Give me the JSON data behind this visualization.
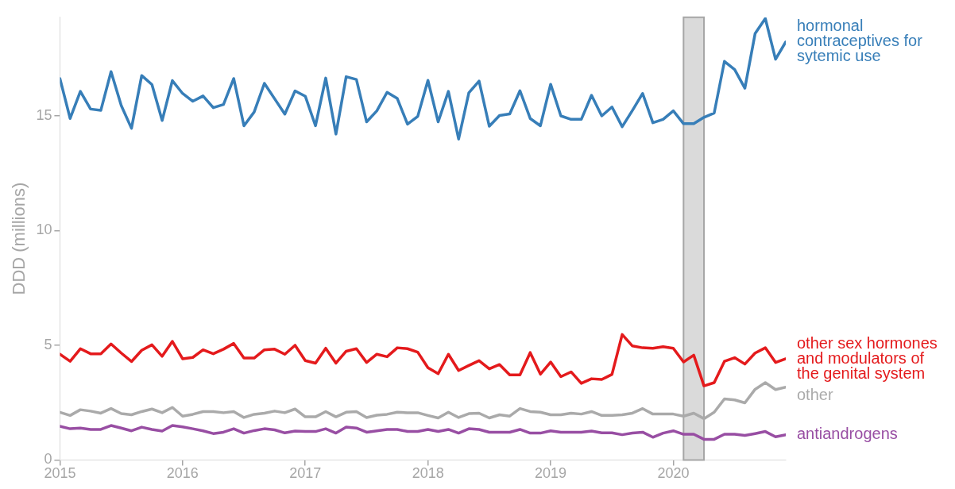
{
  "chart_data": {
    "type": "line",
    "ylabel": "DDD (millions)",
    "x": [
      "2015-01",
      "2015-02",
      "2015-03",
      "2015-04",
      "2015-05",
      "2015-06",
      "2015-07",
      "2015-08",
      "2015-09",
      "2015-10",
      "2015-11",
      "2015-12",
      "2016-01",
      "2016-02",
      "2016-03",
      "2016-04",
      "2016-05",
      "2016-06",
      "2016-07",
      "2016-08",
      "2016-09",
      "2016-10",
      "2016-11",
      "2016-12",
      "2017-01",
      "2017-02",
      "2017-03",
      "2017-04",
      "2017-05",
      "2017-06",
      "2017-07",
      "2017-08",
      "2017-09",
      "2017-10",
      "2017-11",
      "2017-12",
      "2018-01",
      "2018-02",
      "2018-03",
      "2018-04",
      "2018-05",
      "2018-06",
      "2018-07",
      "2018-08",
      "2018-09",
      "2018-10",
      "2018-11",
      "2018-12",
      "2019-01",
      "2019-02",
      "2019-03",
      "2019-04",
      "2019-05",
      "2019-06",
      "2019-07",
      "2019-08",
      "2019-09",
      "2019-10",
      "2019-11",
      "2019-12",
      "2020-01",
      "2020-02",
      "2020-03",
      "2020-04",
      "2020-05",
      "2020-06",
      "2020-07",
      "2020-08",
      "2020-09",
      "2020-10",
      "2020-11",
      "2020-12"
    ],
    "series": [
      {
        "name": "hormonal contraceptives for sytemic use",
        "color": "#377eb8",
        "values": [
          16.63,
          14.89,
          16.07,
          15.3,
          15.24,
          16.93,
          15.45,
          14.46,
          16.76,
          16.37,
          14.8,
          16.54,
          15.98,
          15.64,
          15.87,
          15.36,
          15.5,
          16.63,
          14.57,
          15.17,
          16.42,
          15.75,
          15.08,
          16.09,
          15.86,
          14.57,
          16.65,
          14.21,
          16.71,
          16.59,
          14.74,
          15.22,
          16.03,
          15.76,
          14.64,
          14.98,
          16.55,
          14.74,
          16.07,
          13.99,
          16.01,
          16.52,
          14.55,
          15.02,
          15.09,
          16.1,
          14.89,
          14.57,
          16.38,
          15.0,
          14.85,
          14.85,
          15.9,
          15.0,
          15.39,
          14.53,
          15.24,
          15.98,
          14.7,
          14.85,
          15.22,
          14.66,
          14.66,
          14.94,
          15.13,
          17.38,
          17.02,
          16.21,
          18.59,
          19.25,
          17.47,
          18.23
        ]
      },
      {
        "name": "other sex hormones and modulators of the genital system",
        "color": "#e41a1c",
        "values": [
          4.61,
          4.3,
          4.85,
          4.63,
          4.63,
          5.06,
          4.66,
          4.29,
          4.78,
          5.02,
          4.52,
          5.17,
          4.41,
          4.47,
          4.8,
          4.63,
          4.83,
          5.08,
          4.44,
          4.44,
          4.8,
          4.83,
          4.61,
          5.0,
          4.33,
          4.22,
          4.87,
          4.22,
          4.74,
          4.85,
          4.25,
          4.61,
          4.5,
          4.89,
          4.85,
          4.7,
          4.02,
          3.76,
          4.61,
          3.9,
          4.12,
          4.33,
          3.97,
          4.16,
          3.71,
          3.71,
          4.68,
          3.74,
          4.27,
          3.63,
          3.84,
          3.34,
          3.54,
          3.51,
          3.73,
          5.47,
          4.97,
          4.89,
          4.87,
          4.94,
          4.87,
          4.27,
          4.57,
          3.23,
          3.37,
          4.3,
          4.46,
          4.18,
          4.66,
          4.89,
          4.25,
          4.41
        ]
      },
      {
        "name": "other",
        "color": "#aaaaaa",
        "values": [
          2.08,
          1.94,
          2.19,
          2.13,
          2.04,
          2.24,
          2.02,
          1.97,
          2.11,
          2.22,
          2.06,
          2.29,
          1.91,
          1.99,
          2.11,
          2.11,
          2.06,
          2.11,
          1.85,
          1.99,
          2.04,
          2.13,
          2.06,
          2.22,
          1.88,
          1.88,
          2.11,
          1.88,
          2.08,
          2.11,
          1.85,
          1.95,
          1.99,
          2.08,
          2.06,
          2.06,
          1.94,
          1.83,
          2.08,
          1.85,
          2.02,
          2.04,
          1.83,
          1.97,
          1.91,
          2.24,
          2.11,
          2.08,
          1.97,
          1.97,
          2.04,
          2.0,
          2.11,
          1.94,
          1.94,
          1.97,
          2.04,
          2.24,
          2.0,
          2.0,
          2.0,
          1.91,
          2.04,
          1.8,
          2.08,
          2.66,
          2.62,
          2.49,
          3.08,
          3.37,
          3.07,
          3.17
        ]
      },
      {
        "name": "antiandrogens",
        "color": "#984ea3",
        "values": [
          1.47,
          1.36,
          1.39,
          1.33,
          1.33,
          1.5,
          1.39,
          1.27,
          1.43,
          1.33,
          1.26,
          1.5,
          1.44,
          1.36,
          1.27,
          1.15,
          1.21,
          1.36,
          1.17,
          1.28,
          1.36,
          1.31,
          1.18,
          1.26,
          1.24,
          1.24,
          1.36,
          1.17,
          1.43,
          1.39,
          1.21,
          1.27,
          1.33,
          1.33,
          1.24,
          1.24,
          1.33,
          1.24,
          1.33,
          1.17,
          1.36,
          1.33,
          1.21,
          1.21,
          1.21,
          1.33,
          1.17,
          1.17,
          1.27,
          1.21,
          1.21,
          1.21,
          1.26,
          1.18,
          1.18,
          1.1,
          1.17,
          1.21,
          0.99,
          1.17,
          1.27,
          1.12,
          1.12,
          0.9,
          0.9,
          1.12,
          1.12,
          1.07,
          1.15,
          1.24,
          1.01,
          1.1
        ]
      }
    ],
    "xlim": [
      "2015-01",
      "2020-12"
    ],
    "xticks": [
      "2015",
      "2016",
      "2017",
      "2018",
      "2019",
      "2020"
    ],
    "ylim": [
      0,
      19.3
    ],
    "yticks": [
      0,
      5,
      10,
      15
    ],
    "bands": [
      {
        "axis": "x",
        "from": "2020-02",
        "to": "2020-04",
        "color": "#d3d3d3"
      }
    ],
    "grid": false,
    "legend": false,
    "line_style": "solid",
    "marker": "none"
  }
}
